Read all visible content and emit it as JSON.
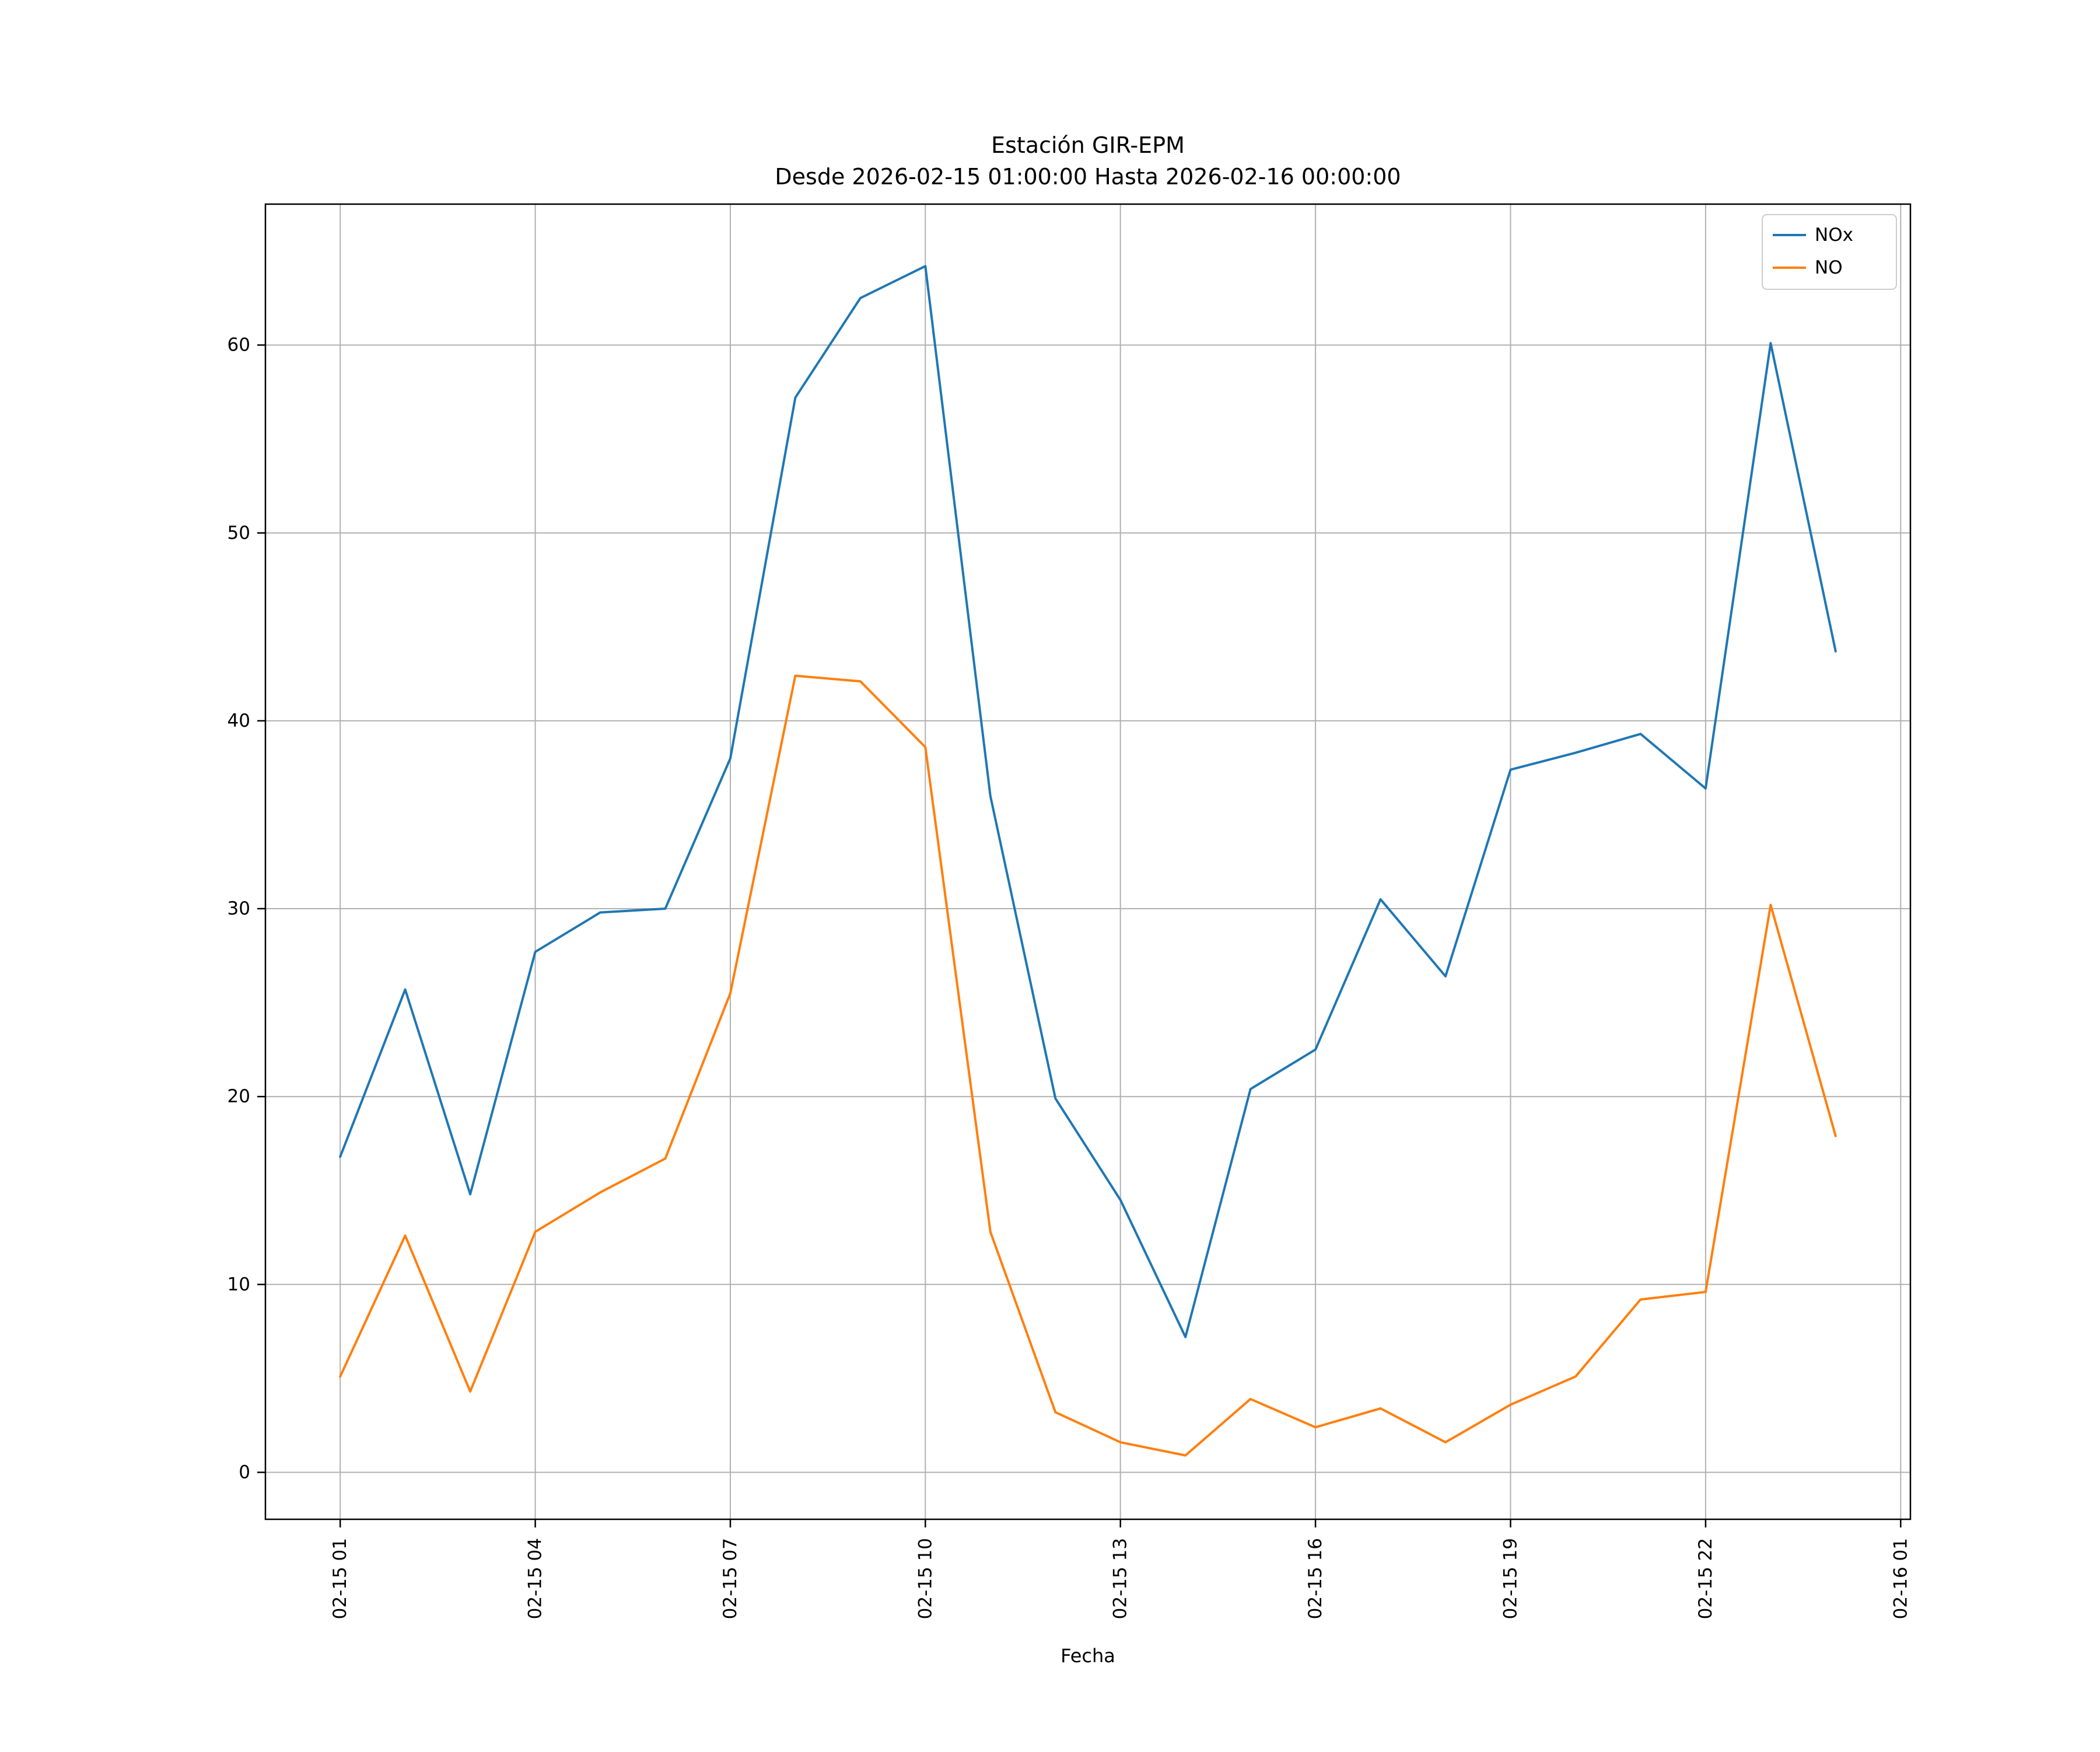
{
  "figure": {
    "background": "#ffffff",
    "text_color": "#000000",
    "spine_color": "#000000"
  },
  "chart_data": {
    "type": "line",
    "title": "Estación GIR-EPM",
    "subtitle": "Desde 2026-02-15 01:00:00 Hasta 2026-02-16 00:00:00",
    "xlabel": "Fecha",
    "ylabel": "",
    "grid": true,
    "grid_color": "#b0b0b0",
    "xlim": [
      -0.15,
      25.15
    ],
    "ylim": [
      -2.5,
      67.5
    ],
    "x_hours": [
      1,
      2,
      3,
      4,
      5,
      6,
      7,
      8,
      9,
      10,
      11,
      12,
      13,
      14,
      15,
      16,
      17,
      18,
      19,
      20,
      21,
      22,
      23,
      24
    ],
    "x_tick_positions": [
      1,
      4,
      7,
      10,
      13,
      16,
      19,
      22,
      25
    ],
    "x_tick_labels": [
      "02-15 01",
      "02-15 04",
      "02-15 07",
      "02-15 10",
      "02-15 13",
      "02-15 16",
      "02-15 19",
      "02-15 22",
      "02-16 01"
    ],
    "y_ticks": [
      0,
      10,
      20,
      30,
      40,
      50,
      60
    ],
    "legend": {
      "position": "upper right",
      "entries": [
        "NOx",
        "NO"
      ]
    },
    "series": [
      {
        "name": "NOx",
        "color": "#1f77b4",
        "values": [
          16.8,
          25.7,
          14.8,
          27.7,
          29.8,
          30.0,
          38.0,
          57.2,
          62.5,
          64.2,
          36.0,
          19.9,
          14.5,
          7.2,
          20.4,
          22.5,
          30.5,
          26.4,
          37.4,
          38.3,
          39.3,
          36.4,
          60.1,
          43.7
        ]
      },
      {
        "name": "NO",
        "color": "#ff7f0e",
        "values": [
          5.1,
          12.6,
          4.3,
          12.8,
          14.9,
          16.7,
          25.5,
          42.4,
          42.1,
          38.6,
          12.8,
          3.2,
          1.6,
          0.9,
          3.9,
          2.4,
          3.4,
          1.6,
          3.6,
          5.1,
          9.2,
          9.6,
          30.2,
          17.9
        ]
      }
    ]
  }
}
